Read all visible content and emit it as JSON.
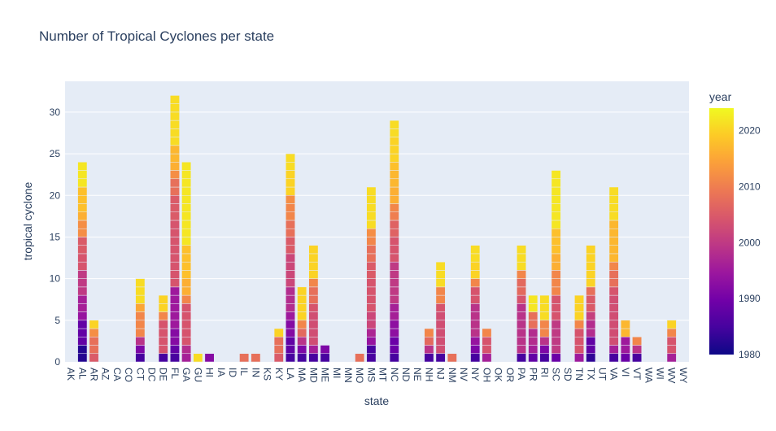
{
  "chart_data": {
    "type": "bar",
    "stacked": true,
    "title": "Number of Tropical Cyclones per state",
    "xlabel": "state",
    "ylabel": "tropical cyclone",
    "ylim": [
      0,
      33.7
    ],
    "yticks": [
      0,
      5,
      10,
      15,
      20,
      25,
      30
    ],
    "grid": true,
    "colorbar": {
      "title": "year",
      "range": [
        1980,
        2024
      ],
      "ticks": [
        1980,
        1990,
        2000,
        2010,
        2020
      ],
      "colorscale": "plasma"
    },
    "categories": [
      "AK",
      "AL",
      "AR",
      "AZ",
      "CA",
      "CO",
      "CT",
      "DC",
      "DE",
      "FL",
      "GA",
      "GU",
      "HI",
      "IA",
      "ID",
      "IL",
      "IN",
      "KS",
      "KY",
      "LA",
      "MA",
      "MD",
      "ME",
      "MI",
      "MN",
      "MO",
      "MS",
      "MT",
      "NC",
      "ND",
      "NE",
      "NH",
      "NJ",
      "NM",
      "NV",
      "NY",
      "OH",
      "OK",
      "OR",
      "PA",
      "PR",
      "RI",
      "SC",
      "SD",
      "TN",
      "TX",
      "UT",
      "VA",
      "VI",
      "VT",
      "WA",
      "WI",
      "WV",
      "WY"
    ],
    "segments": {
      "AK": [],
      "AL": [
        [
          2,
          1982
        ],
        [
          3,
          1988
        ],
        [
          1,
          1994
        ],
        [
          2,
          1996
        ],
        [
          3,
          2000
        ],
        [
          2,
          2004
        ],
        [
          2,
          2005
        ],
        [
          2,
          2012
        ],
        [
          1,
          2016
        ],
        [
          3,
          2018
        ],
        [
          3,
          2022
        ]
      ],
      "AR": [
        [
          1,
          2005
        ],
        [
          2,
          2008
        ],
        [
          1,
          2012
        ],
        [
          1,
          2020
        ]
      ],
      "AZ": [],
      "CA": [],
      "CO": [],
      "CT": [
        [
          1,
          1985
        ],
        [
          1,
          1991
        ],
        [
          1,
          1999
        ],
        [
          3,
          2011
        ],
        [
          1,
          2015
        ],
        [
          3,
          2021
        ]
      ],
      "DC": [],
      "DE": [
        [
          1,
          1985
        ],
        [
          4,
          2004
        ],
        [
          1,
          2011
        ],
        [
          2,
          2020
        ]
      ],
      "FL": [
        [
          1,
          1985
        ],
        [
          1,
          1988
        ],
        [
          2,
          1992
        ],
        [
          5,
          1995
        ],
        [
          8,
          2004
        ],
        [
          3,
          2005
        ],
        [
          2,
          2008
        ],
        [
          1,
          2012
        ],
        [
          1,
          2016
        ],
        [
          2,
          2017
        ],
        [
          6,
          2021
        ]
      ],
      "GA": [
        [
          1,
          1996
        ],
        [
          1,
          1998
        ],
        [
          5,
          2004
        ],
        [
          1,
          2011
        ],
        [
          2,
          2016
        ],
        [
          4,
          2018
        ],
        [
          10,
          2022
        ]
      ],
      "GU": [
        [
          1,
          2021
        ]
      ],
      "HI": [
        [
          1,
          1992
        ]
      ],
      "IA": [],
      "ID": [],
      "IL": [
        [
          1,
          2008
        ]
      ],
      "IN": [
        [
          1,
          2008
        ]
      ],
      "KS": [],
      "KY": [
        [
          1,
          2005
        ],
        [
          2,
          2008
        ],
        [
          1,
          2020
        ]
      ],
      "LA": [
        [
          1,
          1985
        ],
        [
          2,
          1988
        ],
        [
          2,
          1992
        ],
        [
          1,
          1995
        ],
        [
          3,
          1998
        ],
        [
          4,
          2002
        ],
        [
          2,
          2005
        ],
        [
          2,
          2008
        ],
        [
          2,
          2011
        ],
        [
          1,
          2012
        ],
        [
          3,
          2020
        ],
        [
          2,
          2021
        ]
      ],
      "MA": [
        [
          1,
          1985
        ],
        [
          1,
          1991
        ],
        [
          1,
          1999
        ],
        [
          1,
          2007
        ],
        [
          1,
          2011
        ],
        [
          4,
          2020
        ]
      ],
      "MD": [
        [
          1,
          1985
        ],
        [
          1,
          1996
        ],
        [
          4,
          2003
        ],
        [
          1,
          2004
        ],
        [
          2,
          2008
        ],
        [
          1,
          2011
        ],
        [
          4,
          2020
        ]
      ],
      "ME": [
        [
          1,
          1985
        ],
        [
          1,
          1991
        ]
      ],
      "MI": [],
      "MN": [],
      "MO": [
        [
          1,
          2008
        ]
      ],
      "MS": [
        [
          2,
          1985
        ],
        [
          1,
          1994
        ],
        [
          1,
          1997
        ],
        [
          2,
          2002
        ],
        [
          4,
          2004
        ],
        [
          2,
          2005
        ],
        [
          2,
          2008
        ],
        [
          1,
          2011
        ],
        [
          1,
          2012
        ],
        [
          5,
          2021
        ]
      ],
      "MT": [],
      "NC": [
        [
          1,
          1985
        ],
        [
          2,
          1989
        ],
        [
          2,
          1993
        ],
        [
          2,
          1996
        ],
        [
          5,
          2000
        ],
        [
          3,
          2004
        ],
        [
          2,
          2006
        ],
        [
          1,
          2010
        ],
        [
          1,
          2011
        ],
        [
          2,
          2016
        ],
        [
          2,
          2017
        ],
        [
          1,
          2018
        ],
        [
          3,
          2020
        ],
        [
          2,
          2021
        ]
      ],
      "ND": [],
      "NE": [],
      "NH": [
        [
          1,
          1985
        ],
        [
          1,
          1999
        ],
        [
          1,
          2007
        ],
        [
          1,
          2011
        ]
      ],
      "NJ": [
        [
          1,
          1985
        ],
        [
          5,
          2003
        ],
        [
          1,
          2004
        ],
        [
          2,
          2011
        ],
        [
          3,
          2021
        ]
      ],
      "NM": [
        [
          1,
          2008
        ]
      ],
      "NV": [],
      "NY": [
        [
          1,
          1985
        ],
        [
          1,
          1991
        ],
        [
          1,
          1994
        ],
        [
          4,
          1999
        ],
        [
          2,
          2004
        ],
        [
          1,
          2011
        ],
        [
          2,
          2020
        ],
        [
          2,
          2021
        ]
      ],
      "OH": [
        [
          1,
          1996
        ],
        [
          2,
          2004
        ],
        [
          1,
          2011
        ]
      ],
      "OK": [],
      "OR": [],
      "PA": [
        [
          1,
          1985
        ],
        [
          6,
          1999
        ],
        [
          1,
          2004
        ],
        [
          2,
          2007
        ],
        [
          1,
          2011
        ],
        [
          3,
          2021
        ]
      ],
      "PR": [
        [
          1,
          1988
        ],
        [
          1,
          1996
        ],
        [
          2,
          1998
        ],
        [
          2,
          2008
        ],
        [
          2,
          2022
        ]
      ],
      "RI": [
        [
          1,
          1985
        ],
        [
          1,
          1991
        ],
        [
          1,
          1999
        ],
        [
          2,
          2011
        ],
        [
          3,
          2021
        ]
      ],
      "SC": [
        [
          1,
          1989
        ],
        [
          4,
          2000
        ],
        [
          3,
          2004
        ],
        [
          3,
          2011
        ],
        [
          2,
          2016
        ],
        [
          3,
          2018
        ],
        [
          7,
          2022
        ]
      ],
      "SD": [],
      "TN": [
        [
          1,
          1995
        ],
        [
          3,
          2004
        ],
        [
          1,
          2011
        ],
        [
          3,
          2020
        ]
      ],
      "TX": [
        [
          1,
          1983
        ],
        [
          2,
          1988
        ],
        [
          2,
          1998
        ],
        [
          1,
          2001
        ],
        [
          2,
          2005
        ],
        [
          1,
          2008
        ],
        [
          5,
          2020
        ]
      ],
      "UT": [],
      "VA": [
        [
          1,
          1985
        ],
        [
          1,
          1996
        ],
        [
          6,
          2003
        ],
        [
          1,
          2004
        ],
        [
          2,
          2008
        ],
        [
          1,
          2011
        ],
        [
          5,
          2017
        ],
        [
          4,
          2021
        ]
      ],
      "VI": [
        [
          1,
          1989
        ],
        [
          2,
          1995
        ],
        [
          2,
          2017
        ]
      ],
      "VT": [
        [
          1,
          1985
        ],
        [
          1,
          1999
        ],
        [
          1,
          2011
        ]
      ],
      "WA": [],
      "WI": [],
      "WV": [
        [
          1,
          1996
        ],
        [
          2,
          2004
        ],
        [
          1,
          2011
        ],
        [
          1,
          2020
        ]
      ],
      "WY": []
    }
  }
}
